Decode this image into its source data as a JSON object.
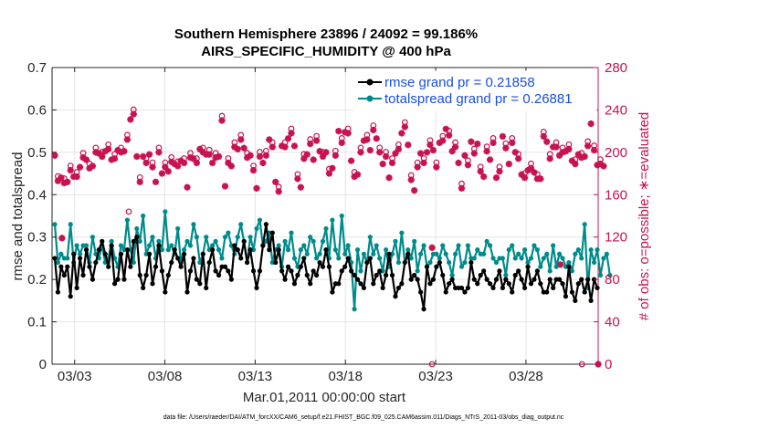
{
  "chart_data": {
    "type": "line",
    "title_line1": "Southern Hemisphere 23896 / 24092 = 99.186%",
    "title_line2": "AIRS_SPECIFIC_HUMIDITY @ 400 hPa",
    "xlabel": "Mar.01,2011 00:00:00 start",
    "ylabel": "rmse and totalspread",
    "y2label": "# of obs: o=possible; ∗=evaluated",
    "x_ticks": [
      "03/03",
      "03/08",
      "03/13",
      "03/18",
      "03/23",
      "03/28"
    ],
    "x_tick_days": [
      3,
      8,
      13,
      18,
      23,
      28
    ],
    "xlim": [
      1.75,
      32.0
    ],
    "y_ticks": [
      "0",
      "0.1",
      "0.2",
      "0.3",
      "0.4",
      "0.5",
      "0.6",
      "0.7"
    ],
    "ylim": [
      0,
      0.7
    ],
    "y2_ticks": [
      "0",
      "40",
      "80",
      "120",
      "160",
      "200",
      "240",
      "280"
    ],
    "y2lim": [
      0,
      280
    ],
    "grid": true,
    "legend_position": "top-right",
    "footer": "data file: /Users/raeder/DAI/ATM_forcXX/CAM6_setup/f.e21.FHIST_BGC.f09_025.CAM6assim.011/Diags_NTrS_2011-03/obs_diag_output.nc",
    "series": [
      {
        "name": "rmse",
        "legend_label": "rmse grand pr = 0.21858",
        "color": "#000000",
        "values": [
          0.25,
          0.17,
          0.23,
          0.21,
          0.23,
          0.16,
          0.26,
          0.18,
          0.25,
          0.21,
          0.27,
          0.23,
          0.2,
          0.24,
          0.27,
          0.29,
          0.26,
          0.23,
          0.28,
          0.19,
          0.2,
          0.26,
          0.2,
          0.27,
          0.23,
          0.29,
          0.3,
          0.21,
          0.18,
          0.21,
          0.26,
          0.19,
          0.23,
          0.28,
          0.22,
          0.17,
          0.21,
          0.24,
          0.27,
          0.25,
          0.23,
          0.26,
          0.17,
          0.22,
          0.25,
          0.2,
          0.19,
          0.26,
          0.18,
          0.24,
          0.27,
          0.22,
          0.21,
          0.23,
          0.23,
          0.22,
          0.2,
          0.28,
          0.27,
          0.25,
          0.29,
          0.24,
          0.27,
          0.22,
          0.18,
          0.22,
          0.28,
          0.33,
          0.27,
          0.31,
          0.24,
          0.27,
          0.22,
          0.2,
          0.23,
          0.22,
          0.19,
          0.21,
          0.23,
          0.25,
          0.21,
          0.19,
          0.22,
          0.21,
          0.24,
          0.23,
          0.27,
          0.23,
          0.17,
          0.19,
          0.19,
          0.22,
          0.23,
          0.25,
          0.22,
          0.21,
          0.2,
          0.19,
          0.18,
          0.24,
          0.25,
          0.19,
          0.21,
          0.22,
          0.18,
          0.21,
          0.26,
          0.21,
          0.16,
          0.18,
          0.19,
          0.24,
          0.26,
          0.2,
          0.21,
          0.2,
          0.17,
          0.13,
          0.23,
          0.19,
          0.2,
          0.23,
          0.24,
          0.21,
          0.17,
          0.19,
          0.2,
          0.18,
          0.18,
          0.18,
          0.17,
          0.18,
          0.24,
          0.2,
          0.19,
          0.21,
          0.22,
          0.2,
          0.19,
          0.18,
          0.2,
          0.22,
          0.18,
          0.2,
          0.19,
          0.17,
          0.21,
          0.22,
          0.2,
          0.18,
          0.23,
          0.19,
          0.2,
          0.22,
          0.19,
          0.17,
          0.17,
          0.2,
          0.18,
          0.2,
          0.2,
          0.19,
          0.16,
          0.23,
          0.17,
          0.15,
          0.19,
          0.2,
          0.17,
          0.2,
          0.15,
          0.2,
          0.18
        ]
      },
      {
        "name": "totalspread",
        "legend_label": "totalspread grand pr = 0.26881",
        "color": "#008b8b",
        "values": [
          0.33,
          0.24,
          0.26,
          0.25,
          0.25,
          0.33,
          0.24,
          0.28,
          0.26,
          0.28,
          0.28,
          0.24,
          0.3,
          0.26,
          0.25,
          0.28,
          0.24,
          0.25,
          0.29,
          0.25,
          0.23,
          0.28,
          0.27,
          0.34,
          0.27,
          0.24,
          0.32,
          0.29,
          0.35,
          0.26,
          0.28,
          0.3,
          0.25,
          0.29,
          0.27,
          0.36,
          0.27,
          0.28,
          0.26,
          0.32,
          0.24,
          0.27,
          0.29,
          0.28,
          0.33,
          0.3,
          0.24,
          0.26,
          0.3,
          0.27,
          0.28,
          0.29,
          0.27,
          0.25,
          0.3,
          0.31,
          0.28,
          0.26,
          0.3,
          0.33,
          0.29,
          0.24,
          0.3,
          0.27,
          0.32,
          0.34,
          0.28,
          0.29,
          0.31,
          0.24,
          0.27,
          0.28,
          0.23,
          0.29,
          0.27,
          0.31,
          0.25,
          0.23,
          0.27,
          0.28,
          0.26,
          0.3,
          0.29,
          0.25,
          0.26,
          0.29,
          0.32,
          0.25,
          0.34,
          0.27,
          0.25,
          0.35,
          0.26,
          0.28,
          0.24,
          0.13,
          0.27,
          0.22,
          0.26,
          0.24,
          0.3,
          0.26,
          0.28,
          0.25,
          0.22,
          0.27,
          0.23,
          0.26,
          0.29,
          0.24,
          0.31,
          0.24,
          0.27,
          0.25,
          0.29,
          0.22,
          0.26,
          0.28,
          0.23,
          0.24,
          0.26,
          0.26,
          0.25,
          0.28,
          0.26,
          0.24,
          0.21,
          0.26,
          0.28,
          0.23,
          0.24,
          0.28,
          0.25,
          0.25,
          0.27,
          0.26,
          0.26,
          0.29,
          0.28,
          0.25,
          0.24,
          0.25,
          0.25,
          0.21,
          0.27,
          0.28,
          0.25,
          0.26,
          0.25,
          0.27,
          0.24,
          0.25,
          0.28,
          0.27,
          0.23,
          0.25,
          0.26,
          0.22,
          0.28,
          0.23,
          0.26,
          0.25,
          0.23,
          0.24,
          0.22,
          0.26,
          0.27,
          0.25,
          0.33,
          0.18,
          0.27,
          0.24,
          0.27,
          0.21,
          0.25,
          0.26,
          0.21
        ]
      },
      {
        "name": "obs possible",
        "marker": "o",
        "axis": "right",
        "color": "#c8134f",
        "values": [
          197,
          173,
          176,
          171,
          172,
          183,
          177,
          177,
          186,
          195,
          193,
          185,
          187,
          200,
          199,
          196,
          201,
          203,
          193,
          194,
          202,
          200,
          201,
          212,
          231,
          236,
          196,
          172,
          196,
          190,
          198,
          186,
          172,
          200,
          180,
          186,
          182,
          191,
          189,
          187,
          192,
          190,
          167,
          195,
          194,
          190,
          203,
          200,
          198,
          198,
          190,
          195,
          196,
          230,
          168,
          190,
          187,
          205,
          203,
          212,
          204,
          195,
          197,
          183,
          166,
          196,
          190,
          197,
          212,
          205,
          172,
          163,
          206,
          205,
          213,
          218,
          206,
          175,
          167,
          194,
          198,
          208,
          193,
          211,
          201,
          196,
          200,
          180,
          185,
          197,
          220,
          209,
          219,
          218,
          192,
          177,
          179,
          200,
          211,
          212,
          202,
          221,
          213,
          200,
          189,
          196,
          176,
          190,
          199,
          203,
          218,
          224,
          207,
          174,
          164,
          186,
          199,
          190,
          200,
          207,
          202,
          186,
          209,
          211,
          222,
          216,
          201,
          205,
          190,
          166,
          197,
          188,
          210,
          199,
          208,
          182,
          177,
          201,
          193,
          209,
          176,
          182,
          215,
          204,
          189,
          209,
          200,
          194,
          179,
          176,
          183,
          185,
          181,
          175,
          175,
          215,
          210,
          194,
          205,
          205,
          197,
          200,
          201,
          203,
          192,
          189,
          198,
          195,
          196,
          206,
          227,
          202,
          188,
          189,
          187
        ],
        "outliers": [
          {
            "day": 6.0,
            "value": 144
          },
          {
            "day": 22.8,
            "value": 0
          },
          {
            "day": 31.1,
            "value": 0
          }
        ]
      },
      {
        "name": "obs evaluated",
        "marker": "*",
        "axis": "right",
        "color": "#c8134f",
        "values": [
          197,
          173,
          176,
          171,
          172,
          183,
          177,
          177,
          186,
          195,
          193,
          185,
          187,
          200,
          199,
          196,
          201,
          203,
          193,
          194,
          202,
          200,
          201,
          212,
          231,
          236,
          196,
          172,
          196,
          190,
          198,
          186,
          172,
          200,
          180,
          186,
          182,
          191,
          189,
          187,
          192,
          190,
          167,
          195,
          194,
          190,
          203,
          200,
          198,
          198,
          190,
          195,
          196,
          230,
          168,
          190,
          187,
          205,
          203,
          212,
          204,
          195,
          197,
          183,
          166,
          196,
          190,
          197,
          212,
          205,
          172,
          163,
          206,
          205,
          213,
          218,
          206,
          175,
          167,
          194,
          198,
          208,
          193,
          211,
          201,
          196,
          200,
          180,
          185,
          197,
          220,
          209,
          219,
          218,
          192,
          177,
          179,
          200,
          211,
          212,
          202,
          221,
          213,
          200,
          189,
          196,
          176,
          190,
          199,
          203,
          218,
          224,
          207,
          174,
          164,
          186,
          199,
          190,
          200,
          207,
          202,
          186,
          209,
          211,
          222,
          216,
          201,
          205,
          190,
          166,
          197,
          188,
          210,
          199,
          208,
          182,
          177,
          201,
          193,
          209,
          176,
          182,
          215,
          204,
          189,
          209,
          200,
          194,
          179,
          176,
          183,
          185,
          181,
          175,
          175,
          215,
          210,
          194,
          205,
          205,
          197,
          200,
          201,
          203,
          192,
          189,
          198,
          195,
          196,
          206,
          227,
          202,
          188,
          189,
          187
        ],
        "outliers": [
          {
            "day": 2.3,
            "value": 119
          },
          {
            "day": 22.8,
            "value": 110
          },
          {
            "day": 29.9,
            "value": 94
          },
          {
            "day": 32.0,
            "value": 0
          }
        ]
      }
    ]
  }
}
